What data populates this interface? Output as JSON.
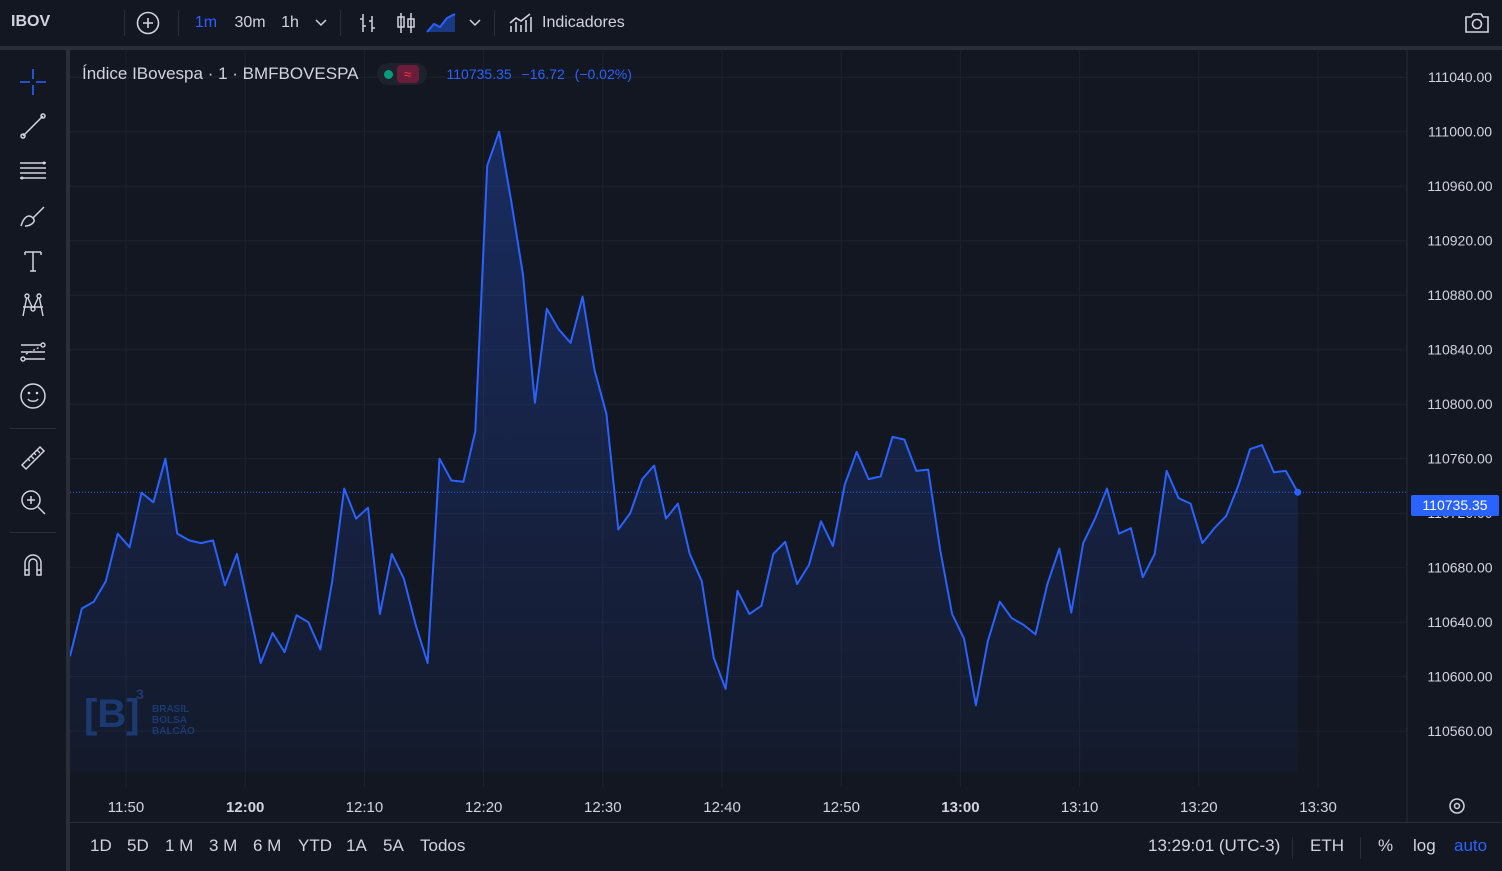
{
  "header": {
    "symbol": "IBOV",
    "intervals": [
      "1m",
      "30m",
      "1h"
    ],
    "active_interval": "1m",
    "indicators_label": "Indicadores"
  },
  "legend": {
    "title": "Índice IBovespa · 1 · BMFBOVESPA",
    "last": "110735.35",
    "change": "−16.72",
    "change_pct": "(−0.02%)"
  },
  "watermark": {
    "brand": "B",
    "sup": "3",
    "lines": [
      "BRASIL",
      "BOLSA",
      "BALCÃO"
    ]
  },
  "bottom": {
    "ranges": [
      "1D",
      "5D",
      "1 M",
      "3 M",
      "6 M",
      "YTD",
      "1A",
      "5A",
      "Todos"
    ],
    "time": "13:29:01 (UTC-3)",
    "session": "ETH",
    "percent": "%",
    "log": "log",
    "auto": "auto"
  },
  "icons": {
    "top": [
      "add-symbol-icon",
      "chevron-down-icon",
      "bar-style-icon",
      "candle-style-icon",
      "area-style-icon",
      "indicators-icon",
      "camera-icon"
    ],
    "left": [
      "crosshair-icon",
      "trend-line-icon",
      "fib-icon",
      "brush-icon",
      "text-icon",
      "pattern-icon",
      "forecast-icon",
      "emoji-icon",
      "ruler-icon",
      "zoom-in-icon",
      "magnet-icon"
    ]
  },
  "colors": {
    "line": "#2962ff",
    "background": "#131722",
    "grid": "#1e222d",
    "text": "#d1d4dc"
  },
  "chart_data": {
    "type": "area",
    "current_price": 110735.35,
    "current_price_label": "110735.35",
    "ylim": [
      110530,
      111060
    ],
    "y_ticks": [
      111040,
      111000,
      110960,
      110920,
      110880,
      110840,
      110800,
      110760,
      110720,
      110680,
      110640,
      110600,
      110560
    ],
    "y_tick_labels": [
      "111040.00",
      "111000.00",
      "110960.00",
      "110920.00",
      "110880.00",
      "110840.00",
      "110800.00",
      "110760.00",
      "110720.00",
      "110680.00",
      "110640.00",
      "110600.00",
      "110560.00"
    ],
    "x_tick_labels": [
      "11:50",
      "12:00",
      "12:10",
      "12:20",
      "12:30",
      "12:40",
      "12:50",
      "13:00",
      "13:10",
      "13:20",
      "13:30"
    ],
    "x_tick_minutes": [
      710,
      720,
      730,
      740,
      750,
      760,
      770,
      780,
      790,
      800,
      810
    ],
    "x_start_minute": 705.3,
    "x_bold_labels": [
      "12:00",
      "13:00"
    ],
    "series": [
      {
        "values": [
          110615,
          110650,
          110655,
          110670,
          110705,
          110695,
          110735,
          110728,
          110760,
          110705,
          110700,
          110698,
          110700,
          110667,
          110690,
          110650,
          110610,
          110632,
          110618,
          110645,
          110640,
          110620,
          110670,
          110738,
          110716,
          110724,
          110646,
          110690,
          110672,
          110638,
          110610,
          110760,
          110744,
          110743,
          110780,
          110975,
          111000,
          110950,
          110895,
          110801,
          110870,
          110855,
          110845,
          110879,
          110825,
          110793,
          110708,
          110720,
          110745,
          110755,
          110716,
          110727,
          110690,
          110670,
          110614,
          110591,
          110663,
          110646,
          110652,
          110690,
          110699,
          110668,
          110682,
          110714,
          110696,
          110741,
          110765,
          110745,
          110747,
          110776,
          110774,
          110751,
          110752,
          110693,
          110646,
          110628,
          110579,
          110626,
          110655,
          110643,
          110638,
          110631,
          110668,
          110694,
          110647,
          110698,
          110716,
          110738,
          110705,
          110709,
          110673,
          110690,
          110751,
          110731,
          110727,
          110698,
          110709,
          110718,
          110740,
          110767,
          110770,
          110750,
          110751,
          110735.35
        ]
      }
    ]
  }
}
